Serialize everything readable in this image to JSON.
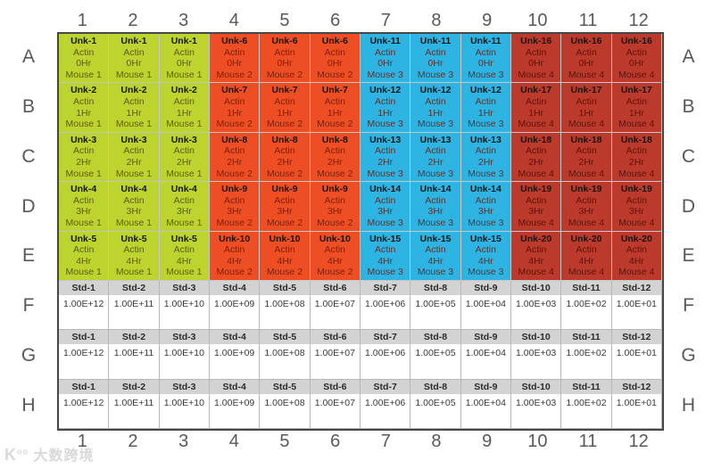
{
  "watermark": {
    "logo": "K",
    "logo_sup": "oo",
    "text": "大数跨境"
  },
  "plate": {
    "column_labels": [
      "1",
      "2",
      "3",
      "4",
      "5",
      "6",
      "7",
      "8",
      "9",
      "10",
      "11",
      "12"
    ],
    "row_labels": [
      "A",
      "B",
      "C",
      "D",
      "E",
      "F",
      "G",
      "H"
    ],
    "target": "Actin",
    "hours_by_row": {
      "A": "0Hr",
      "B": "1Hr",
      "C": "2Hr",
      "D": "3Hr",
      "E": "4Hr"
    },
    "groups": [
      {
        "columns": [
          1,
          2,
          3
        ],
        "mouse": "Mouse 1",
        "fill": "#bdd42f",
        "secondary_text": "#5f5a12",
        "unks": {
          "A": "Unk-1",
          "B": "Unk-2",
          "C": "Unk-3",
          "D": "Unk-4",
          "E": "Unk-5"
        }
      },
      {
        "columns": [
          4,
          5,
          6
        ],
        "mouse": "Mouse 2",
        "fill": "#ee4e23",
        "secondary_text": "#7a1f08",
        "unks": {
          "A": "Unk-6",
          "B": "Unk-7",
          "C": "Unk-8",
          "D": "Unk-9",
          "E": "Unk-10"
        }
      },
      {
        "columns": [
          7,
          8,
          9
        ],
        "mouse": "Mouse 3",
        "fill": "#2db4e3",
        "secondary_text": "#633028",
        "unks": {
          "A": "Unk-11",
          "B": "Unk-12",
          "C": "Unk-13",
          "D": "Unk-14",
          "E": "Unk-15"
        }
      },
      {
        "columns": [
          10,
          11,
          12
        ],
        "mouse": "Mouse 4",
        "fill": "#bc3a2b",
        "secondary_text": "#5c120c",
        "unks": {
          "A": "Unk-16",
          "B": "Unk-17",
          "C": "Unk-18",
          "D": "Unk-19",
          "E": "Unk-20"
        }
      }
    ],
    "standard_rows": [
      "F",
      "G",
      "H"
    ],
    "standards": [
      {
        "label": "Std-1",
        "value": "1.00E+12"
      },
      {
        "label": "Std-2",
        "value": "1.00E+11"
      },
      {
        "label": "Std-3",
        "value": "1.00E+10"
      },
      {
        "label": "Std-4",
        "value": "1.00E+09"
      },
      {
        "label": "Std-5",
        "value": "1.00E+08"
      },
      {
        "label": "Std-6",
        "value": "1.00E+07"
      },
      {
        "label": "Std-7",
        "value": "1.00E+06"
      },
      {
        "label": "Std-8",
        "value": "1.00E+05"
      },
      {
        "label": "Std-9",
        "value": "1.00E+04"
      },
      {
        "label": "Std-10",
        "value": "1.00E+03"
      },
      {
        "label": "Std-11",
        "value": "1.00E+02"
      },
      {
        "label": "Std-12",
        "value": "1.00E+01"
      }
    ]
  },
  "colors": {
    "outer_border": "#474747",
    "grid_line": "#c6c6c6",
    "std_header_bg": "#d3d3d3",
    "label_text": "#585858"
  }
}
